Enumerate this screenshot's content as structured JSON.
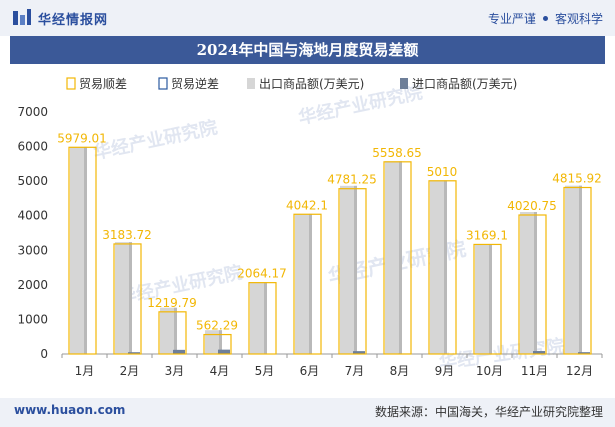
{
  "header": {
    "brand": "华经情报网",
    "tagline_left": "专业严谨",
    "tagline_right": "客观科学"
  },
  "title": "2024年中国与海地月度贸易差额",
  "footer": {
    "url": "www.huaon.com",
    "source": "数据来源：中国海关，华经产业研究院整理"
  },
  "colors": {
    "surplus": "#f2b705",
    "deficit": "#2b5aa0",
    "export": "#d6d6d6",
    "import": "#6e7f99",
    "brand": "#2b4f9e"
  },
  "chart_data": {
    "type": "bar",
    "categories": [
      "1月",
      "2月",
      "3月",
      "4月",
      "5月",
      "6月",
      "7月",
      "8月",
      "9月",
      "10月",
      "11月",
      "12月"
    ],
    "series": [
      {
        "name": "贸易顺差",
        "values": [
          5979.01,
          3183.72,
          1219.79,
          562.29,
          2064.17,
          4042.1,
          4781.25,
          5558.65,
          5010,
          3169.1,
          4020.75,
          4815.92
        ]
      },
      {
        "name": "贸易逆差",
        "values": [
          0,
          0,
          0,
          0,
          0,
          0,
          0,
          0,
          0,
          0,
          0,
          0
        ]
      },
      {
        "name": "出口商品额(万美元)",
        "values": [
          5990,
          3236,
          1340,
          688,
          2075,
          4052,
          4864,
          5575,
          5022,
          3176,
          4107,
          4869
        ]
      },
      {
        "name": "进口商品额(万美元)",
        "values": [
          11,
          52,
          120,
          126,
          11,
          10,
          83,
          16,
          12,
          7,
          86,
          53
        ]
      }
    ],
    "data_labels": [
      "5979.01",
      "3183.72",
      "1219.79",
      "562.29",
      "2064.17",
      "4042.1",
      "4781.25",
      "5558.65",
      "5010",
      "3169.1",
      "4020.75",
      "4815.92"
    ],
    "y_ticks": [
      "0",
      "1000",
      "2000",
      "3000",
      "4000",
      "5000",
      "6000",
      "7000"
    ],
    "ylim": [
      0,
      7000
    ],
    "legend_position": "top",
    "grid": false
  }
}
